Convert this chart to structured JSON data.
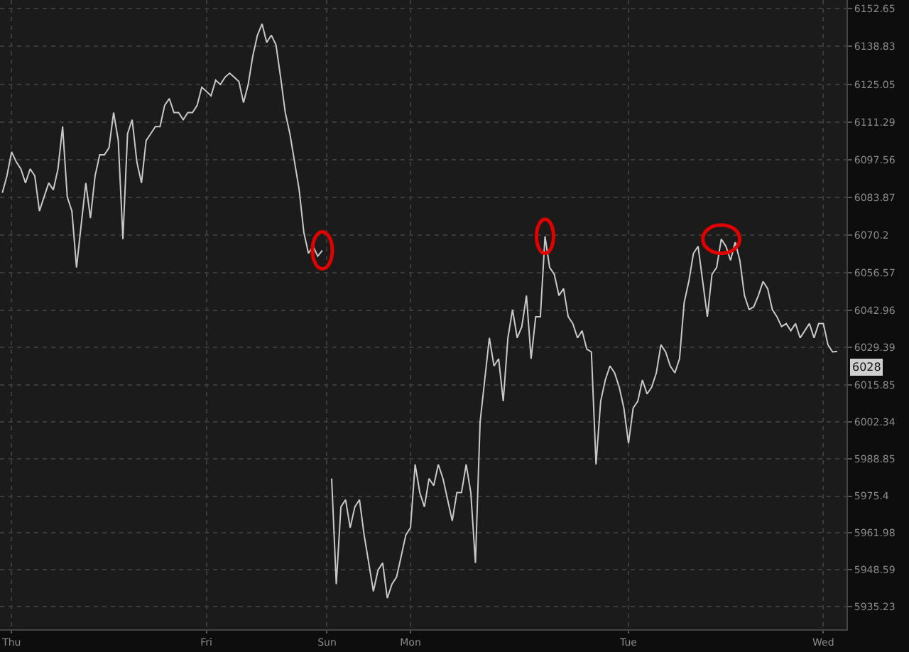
{
  "chart_data": {
    "type": "line",
    "categories": [
      null,
      null,
      "Thu",
      null,
      null,
      null,
      null,
      null,
      null,
      null,
      null,
      null,
      null,
      null,
      null,
      null,
      null,
      null,
      null,
      null,
      null,
      null,
      null,
      null,
      null,
      null,
      null,
      null,
      null,
      null,
      null,
      null,
      null,
      null,
      null,
      null,
      null,
      null,
      null,
      null,
      null,
      null,
      null,
      null,
      "Fri",
      null,
      null,
      null,
      null,
      null,
      null,
      null,
      null,
      null,
      null,
      null,
      null,
      null,
      null,
      null,
      null,
      null,
      null,
      null,
      null,
      null,
      null,
      null,
      null,
      null,
      "Sun",
      null,
      null,
      null,
      null,
      null,
      null,
      null,
      null,
      null,
      null,
      null,
      null,
      null,
      null,
      null,
      null,
      null,
      "Mon",
      null,
      null,
      null,
      null,
      null,
      null,
      null,
      null,
      null,
      null,
      null,
      null,
      null,
      null,
      null,
      null,
      null,
      null,
      null,
      null,
      null,
      null,
      null,
      null,
      null,
      null,
      null,
      null,
      null,
      null,
      null,
      null,
      null,
      null,
      null,
      null,
      null,
      null,
      null,
      null,
      null,
      null,
      null,
      null,
      null,
      null,
      "Tue",
      null,
      null,
      null,
      null,
      null,
      null,
      null,
      null,
      null,
      null,
      null,
      null,
      null,
      null,
      null,
      null,
      null,
      null,
      null,
      null,
      null,
      null,
      null,
      null,
      null,
      null,
      null,
      null,
      null,
      null,
      null,
      null,
      null,
      null,
      null,
      null,
      null,
      null,
      null,
      null,
      null,
      "Wed",
      null,
      null,
      null
    ],
    "values": [
      6085.6,
      6091.8,
      6100.5,
      6096.9,
      6094.3,
      6089.2,
      6094.3,
      6091.8,
      6079.0,
      6084.1,
      6089.2,
      6086.7,
      6094.3,
      6109.7,
      6084.1,
      6079.0,
      6058.5,
      6073.9,
      6089.2,
      6076.4,
      6091.8,
      6099.4,
      6099.4,
      6102.0,
      6114.8,
      6104.6,
      6068.8,
      6107.1,
      6112.2,
      6096.9,
      6089.2,
      6104.6,
      6107.1,
      6109.7,
      6109.7,
      6117.4,
      6119.9,
      6114.8,
      6114.8,
      6112.2,
      6114.8,
      6114.8,
      6117.4,
      6124.0,
      6122.5,
      6120.9,
      6126.6,
      6125.0,
      6127.6,
      6129.1,
      6127.6,
      6126.1,
      6118.4,
      6125.0,
      6135.3,
      6142.9,
      6147.0,
      6140.3,
      6142.9,
      6139.4,
      6127.6,
      6114.8,
      6107.1,
      6096.9,
      6086.7,
      6071.3,
      6063.6,
      6066.2,
      6062.6,
      6064.7,
      null,
      5981.8,
      5943.4,
      5971.5,
      5974.1,
      5963.9,
      5971.5,
      5974.1,
      5961.3,
      5951.1,
      5940.8,
      5948.5,
      5951.1,
      5938.3,
      5943.4,
      5946.0,
      5953.6,
      5961.3,
      5963.9,
      5986.9,
      5976.7,
      5971.5,
      5981.8,
      5979.2,
      5986.9,
      5981.8,
      5974.1,
      5966.4,
      5976.7,
      5976.7,
      5986.9,
      5976.7,
      5951.1,
      6002.2,
      6017.6,
      6032.9,
      6022.7,
      6025.3,
      6009.9,
      6032.9,
      6043.2,
      6032.9,
      6037.0,
      6048.3,
      6025.3,
      6040.6,
      6040.6,
      6069.8,
      6058.5,
      6056.0,
      6048.3,
      6050.8,
      6040.6,
      6038.1,
      6032.9,
      6035.5,
      6028.8,
      6027.8,
      5986.9,
      6009.9,
      6017.6,
      6022.7,
      6020.2,
      6015.0,
      6007.4,
      5994.6,
      6007.4,
      6009.9,
      6017.6,
      6012.5,
      6015.0,
      6020.2,
      6030.4,
      6027.8,
      6022.7,
      6020.2,
      6025.3,
      6045.7,
      6053.4,
      6063.6,
      6066.2,
      6053.4,
      6040.6,
      6056.0,
      6058.5,
      6068.8,
      6066.2,
      6061.1,
      6067.7,
      6061.1,
      6048.3,
      6043.2,
      6044.2,
      6048.3,
      6053.4,
      6050.8,
      6043.2,
      6040.6,
      6037.0,
      6038.1,
      6035.5,
      6038.1,
      6032.9,
      6035.5,
      6038.1,
      6032.9,
      6038.1,
      6038.1,
      6030.4,
      6027.8,
      6028.0
    ],
    "color": "#c8c8c8",
    "ylim": [
      5927.0,
      6155.7
    ],
    "yticks": [
      6152.65,
      6138.83,
      6125.05,
      6111.29,
      6097.56,
      6083.87,
      6070.2,
      6056.57,
      6042.96,
      6029.39,
      6015.85,
      6002.34,
      5988.85,
      5975.4,
      5961.98,
      5948.59,
      5935.23
    ],
    "annotations": [
      "6028"
    ],
    "grid": true,
    "line_style": "solid"
  }
}
